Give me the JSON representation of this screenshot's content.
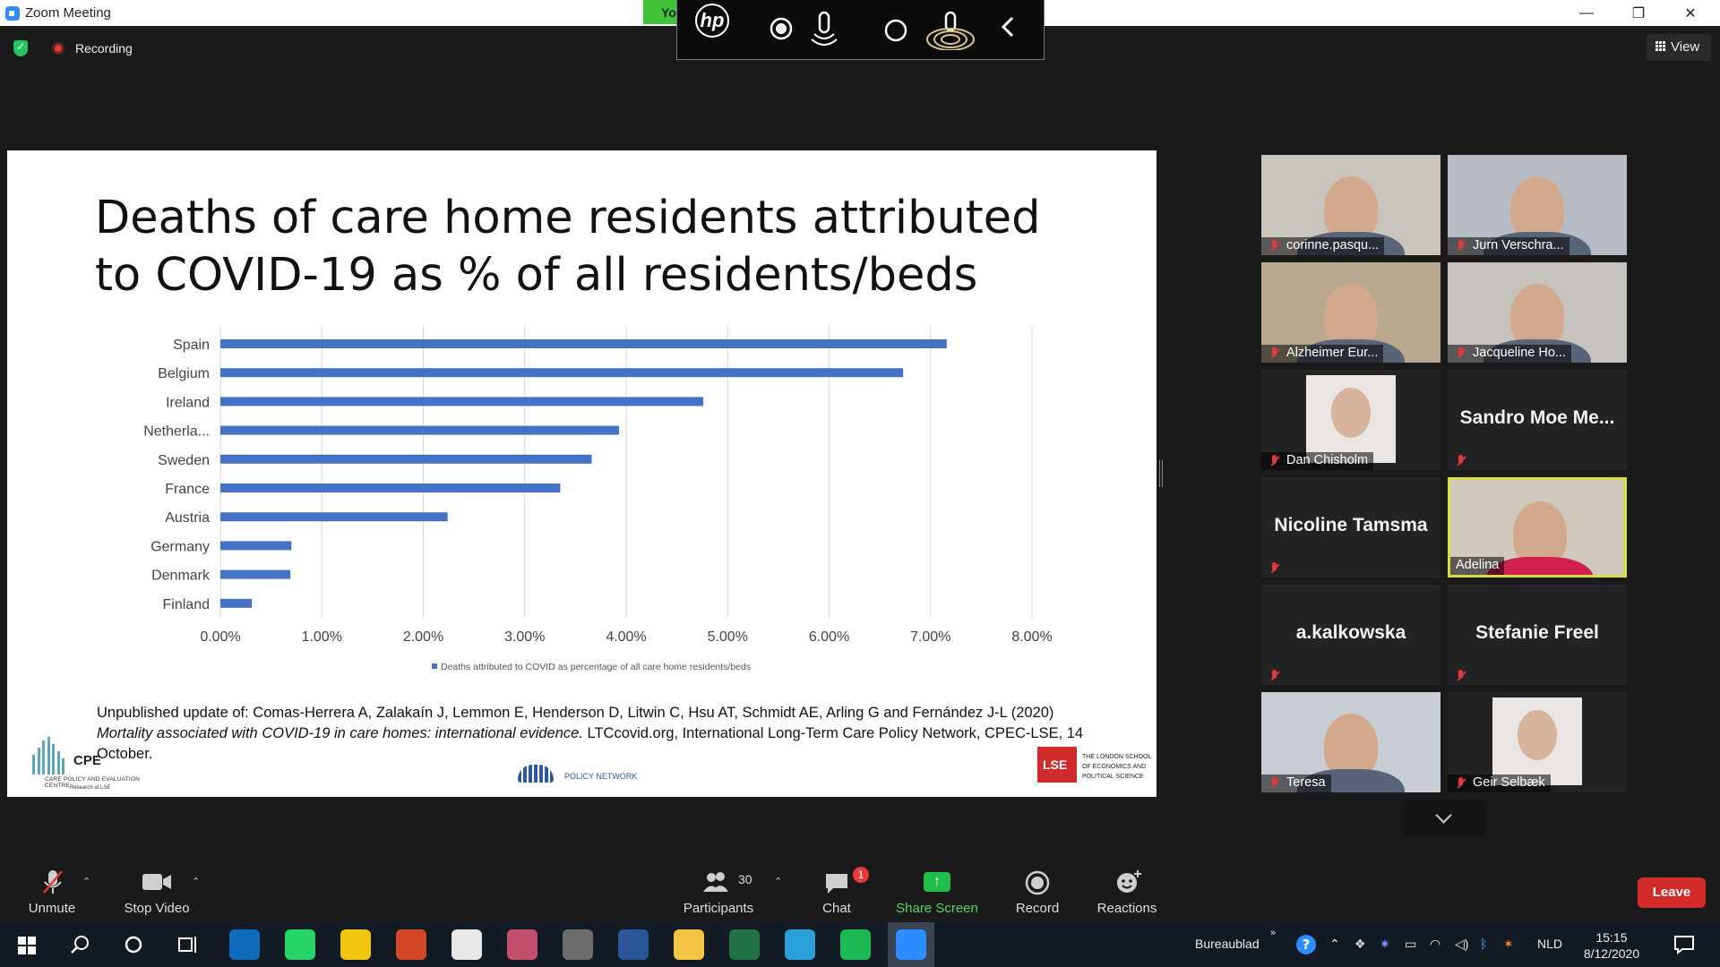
{
  "window": {
    "title": "Zoom Meeting",
    "controls": {
      "minimize": "—",
      "restore": "❐",
      "close": "✕"
    },
    "hidden_tab_text": "Yo"
  },
  "top": {
    "recording_label": "Recording",
    "view_label": "View"
  },
  "hp_overlay": {
    "logo_text": "hp"
  },
  "slide": {
    "title": "Deaths of care home residents attributed to COVID-19 as % of all residents/beds",
    "citation_part1": "Unpublished update of: Comas-Herrera A, Zalakaín J, Lemmon E, Henderson D, Litwin C, Hsu AT, Schmidt AE, Arling G and Fernández J-L (2020) ",
    "citation_italic": "Mortality associated with COVID-19 in care homes: international evidence.",
    "citation_part2": " LTCcovid.org, International Long-Term Care Policy Network, CPEC-LSE, 14 October.",
    "logo_cpec": {
      "abbr": "CPE",
      "subtitle": "CARE POLICY AND EVALUATION CENTRE",
      "research": "Research at LSE"
    },
    "logo_ltc": {
      "text": "POLICY NETWORK"
    },
    "logo_lse": {
      "text": "THE LONDON SCHOOL OF ECONOMICS AND POLITICAL SCIENCE"
    }
  },
  "chart_data": {
    "type": "bar",
    "orientation": "horizontal",
    "title": "Deaths of care home residents attributed to COVID-19 as % of all residents/beds",
    "categories": [
      "Spain",
      "Belgium",
      "Ireland",
      "Netherla...",
      "Sweden",
      "France",
      "Austria",
      "Germany",
      "Denmark",
      "Finland"
    ],
    "values": [
      7.16,
      6.73,
      4.76,
      3.93,
      3.66,
      3.35,
      2.24,
      0.7,
      0.69,
      0.31
    ],
    "series_name": "Deaths attributed to COVID as percentage of all care home residents/beds",
    "xlim": [
      0,
      8
    ],
    "xticks": [
      "0.00%",
      "1.00%",
      "2.00%",
      "3.00%",
      "4.00%",
      "5.00%",
      "6.00%",
      "7.00%",
      "8.00%"
    ],
    "grid": true,
    "legend_position": "bottom",
    "bar_color": "#4472c4"
  },
  "participants": [
    {
      "name": "corinne.pasqu...",
      "muted": true,
      "video": true,
      "bg": "#c9c4bd"
    },
    {
      "name": "Jurn Verschra...",
      "muted": true,
      "video": true,
      "bg": "#b7bcc4"
    },
    {
      "name": "Alzheimer Eur...",
      "muted": true,
      "video": true,
      "bg": "#b8a88f"
    },
    {
      "name": "Jacqueline Ho...",
      "muted": true,
      "video": true,
      "bg": "#c6c2bd"
    },
    {
      "name": "Dan Chisholm",
      "muted": true,
      "video": true,
      "bg": "#232323"
    },
    {
      "name": "Sandro Moe Me...",
      "muted": true,
      "video": false
    },
    {
      "name": "Nicoline Tamsma",
      "muted": true,
      "video": false
    },
    {
      "name": "Adelina",
      "muted": false,
      "video": true,
      "active": true,
      "bg": "#cfc8bd"
    },
    {
      "name": "a.kalkowska",
      "muted": true,
      "video": false
    },
    {
      "name": "Stefanie Freel",
      "muted": true,
      "video": false
    },
    {
      "name": "Teresa",
      "muted": true,
      "video": true,
      "bg": "#c8cdd4"
    },
    {
      "name": "Geir Selbæk",
      "muted": true,
      "video": true,
      "bg": "#232323"
    }
  ],
  "toolbar": {
    "unmute": "Unmute",
    "stop_video": "Stop Video",
    "participants": "Participants",
    "participants_count": "30",
    "chat": "Chat",
    "chat_badge": "1",
    "share_screen": "Share Screen",
    "record": "Record",
    "reactions": "Reactions",
    "leave": "Leave"
  },
  "taskbar": {
    "desktop_label": "Bureaublad",
    "language": "NLD",
    "time": "15:15",
    "date": "8/12/2020",
    "apps": [
      {
        "icon": "outlook-icon",
        "color": "#0f6cbd"
      },
      {
        "icon": "whatsapp-icon",
        "color": "#25d366"
      },
      {
        "icon": "app-yellow-icon",
        "color": "#f2c511"
      },
      {
        "icon": "powerpoint-icon",
        "color": "#d24726"
      },
      {
        "icon": "chrome-icon",
        "color": "#e8e8e8"
      },
      {
        "icon": "snipping-icon",
        "color": "#c44e6e"
      },
      {
        "icon": "calculator-icon",
        "color": "#6c6c6c"
      },
      {
        "icon": "word-icon",
        "color": "#2b579a"
      },
      {
        "icon": "file-explorer-icon",
        "color": "#f4c542"
      },
      {
        "icon": "excel-icon",
        "color": "#217346"
      },
      {
        "icon": "edge-icon",
        "color": "#2aa0d8"
      },
      {
        "icon": "spotify-icon",
        "color": "#1db954"
      },
      {
        "icon": "zoom-icon",
        "color": "#2d8cff"
      }
    ]
  }
}
